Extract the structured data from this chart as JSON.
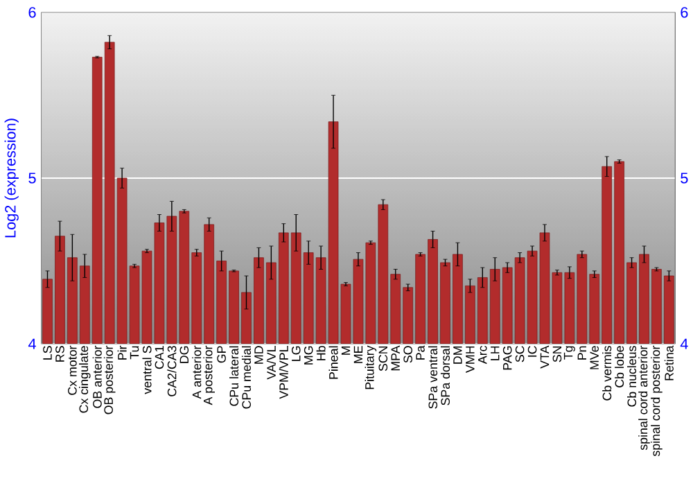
{
  "chart_data": {
    "type": "bar",
    "ylabel": "Log2 (expression)",
    "categories": [
      "LS",
      "RS",
      "Cx motor",
      "Cx cingulate",
      "OB anterior",
      "OB posterior",
      "Pir",
      "Tu",
      "ventral S",
      "CA1",
      "CA2/CA3",
      "DG",
      "A anterior",
      "A posterior",
      "GP",
      "CPu lateral",
      "CPu medial",
      "MD",
      "VA/VL",
      "VPM/VPL",
      "LG",
      "MG",
      "Hb",
      "Pineal",
      "M",
      "ME",
      "Pituitary",
      "SCN",
      "MPA",
      "SO",
      "Pa",
      "SPa ventral",
      "SPa dorsal",
      "DM",
      "VMH",
      "Arc",
      "LH",
      "PAG",
      "SC",
      "IC",
      "VTA",
      "SN",
      "Tg",
      "Pn",
      "MVe",
      "Cb vermis",
      "Cb lobe",
      "Cb nucleus",
      "spinal cord anterior",
      "spinal cord posterior",
      "Retina"
    ],
    "values": [
      4.39,
      4.65,
      4.52,
      4.47,
      5.73,
      5.82,
      5.0,
      4.47,
      4.56,
      4.73,
      4.77,
      4.8,
      4.55,
      4.72,
      4.5,
      4.44,
      4.31,
      4.52,
      4.49,
      4.67,
      4.67,
      4.55,
      4.52,
      5.34,
      4.36,
      4.51,
      4.61,
      4.84,
      4.42,
      4.34,
      4.54,
      4.63,
      4.49,
      4.54,
      4.35,
      4.4,
      4.45,
      4.46,
      4.52,
      4.56,
      4.67,
      4.43,
      4.43,
      4.54,
      4.42,
      5.07,
      5.1,
      4.49,
      4.54,
      4.45,
      4.41
    ],
    "errors": [
      0.05,
      0.09,
      0.14,
      0.07,
      0.005,
      0.04,
      0.06,
      0.01,
      0.01,
      0.05,
      0.09,
      0.01,
      0.02,
      0.04,
      0.06,
      0.005,
      0.1,
      0.06,
      0.1,
      0.055,
      0.11,
      0.07,
      0.07,
      0.16,
      0.01,
      0.04,
      0.01,
      0.03,
      0.03,
      0.02,
      0.01,
      0.05,
      0.02,
      0.07,
      0.04,
      0.06,
      0.07,
      0.03,
      0.03,
      0.03,
      0.05,
      0.015,
      0.035,
      0.02,
      0.02,
      0.06,
      0.01,
      0.03,
      0.05,
      0.01,
      0.03
    ],
    "color": "#b22c2c",
    "ylim": [
      4,
      6
    ],
    "yticks": [
      4,
      5,
      6
    ],
    "y2lim": [
      4,
      6
    ],
    "y2ticks": [
      4,
      5,
      6
    ],
    "grid": "y"
  }
}
